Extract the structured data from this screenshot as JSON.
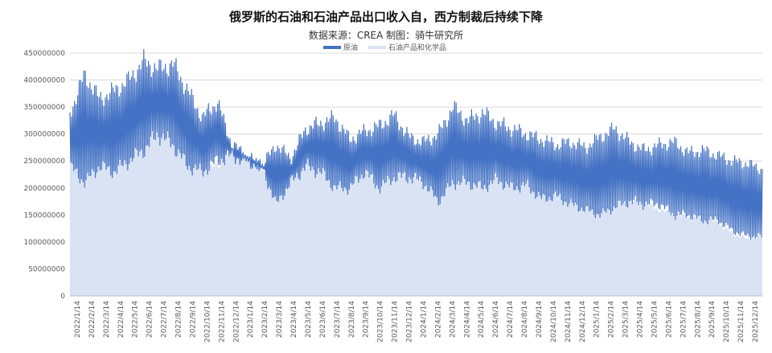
{
  "chart_data": {
    "type": "area",
    "title": "俄罗斯的石油和石油产品出口收入自，西方制裁后持续下降",
    "subtitle": "数据来源：CREA    制图：骑牛研究所",
    "ylim": [
      0,
      450000000
    ],
    "yticks": [
      "0",
      "50000000",
      "100000000",
      "150000000",
      "200000000",
      "250000000",
      "300000000",
      "350000000",
      "400000000",
      "450000000"
    ],
    "x_tick_labels": [
      "2022/1/14",
      "2022/2/14",
      "2022/3/14",
      "2022/4/14",
      "2022/5/14",
      "2022/6/14",
      "2022/7/14",
      "2022/8/14",
      "2022/9/14",
      "2022/10/14",
      "2022/11/14",
      "2022/12/14",
      "2023/1/14",
      "2023/2/14",
      "2023/3/14",
      "2023/4/14",
      "2023/5/14",
      "2023/6/14",
      "2023/7/14",
      "2023/8/14",
      "2023/9/14",
      "2023/10/14",
      "2023/11/14",
      "2023/12/14",
      "2024/1/14",
      "2024/2/14",
      "2024/3/14",
      "2024/4/14",
      "2024/5/14",
      "2024/6/14",
      "2024/7/14",
      "2024/8/14",
      "2024/9/14",
      "2024/10/14",
      "2024/11/14",
      "2024/12/14",
      "2025/1/14",
      "2025/2/14",
      "2025/3/14",
      "2025/4/14",
      "2025/5/14",
      "2025/6/14",
      "2025/7/14",
      "2025/8/14",
      "2025/9/14",
      "2025/10/14",
      "2025/11/14",
      "2025/12/14"
    ],
    "legend_position": "top",
    "stacked": true,
    "series": [
      {
        "name": "原油",
        "color": "#4472C4",
        "values_low": [
          240000000,
          210000000,
          240000000,
          230000000,
          250000000,
          270000000,
          300000000,
          280000000,
          240000000,
          230000000,
          250000000,
          260000000,
          250000000,
          240000000,
          170000000,
          210000000,
          240000000,
          230000000,
          200000000,
          200000000,
          230000000,
          200000000,
          220000000,
          220000000,
          210000000,
          175000000,
          210000000,
          210000000,
          200000000,
          215000000,
          200000000,
          205000000,
          180000000,
          185000000,
          170000000,
          160000000,
          150000000,
          165000000,
          175000000,
          170000000,
          170000000,
          150000000,
          150000000,
          140000000,
          140000000,
          120000000,
          110000000,
          110000000
        ],
        "values_high": [
          340000000,
          410000000,
          365000000,
          380000000,
          400000000,
          435000000,
          420000000,
          430000000,
          380000000,
          330000000,
          360000000,
          280000000,
          260000000,
          240000000,
          280000000,
          255000000,
          310000000,
          320000000,
          330000000,
          290000000,
          305000000,
          315000000,
          335000000,
          295000000,
          285000000,
          300000000,
          350000000,
          325000000,
          340000000,
          320000000,
          310000000,
          300000000,
          290000000,
          280000000,
          285000000,
          275000000,
          295000000,
          310000000,
          285000000,
          270000000,
          280000000,
          285000000,
          265000000,
          270000000,
          260000000,
          250000000,
          245000000,
          235000000
        ]
      },
      {
        "name": "石油产品和化学品",
        "color": "#DAE3F3",
        "values": [
          260000000,
          230000000,
          300000000,
          320000000,
          280000000,
          290000000,
          300000000,
          300000000,
          260000000,
          240000000,
          240000000,
          265000000,
          250000000,
          235000000,
          195000000,
          230000000,
          255000000,
          235000000,
          220000000,
          215000000,
          230000000,
          205000000,
          225000000,
          220000000,
          210000000,
          195000000,
          215000000,
          220000000,
          215000000,
          215000000,
          210000000,
          210000000,
          195000000,
          190000000,
          175000000,
          170000000,
          160000000,
          170000000,
          175000000,
          170000000,
          160000000,
          150000000,
          145000000,
          145000000,
          135000000,
          115000000,
          105000000,
          110000000
        ]
      }
    ]
  }
}
